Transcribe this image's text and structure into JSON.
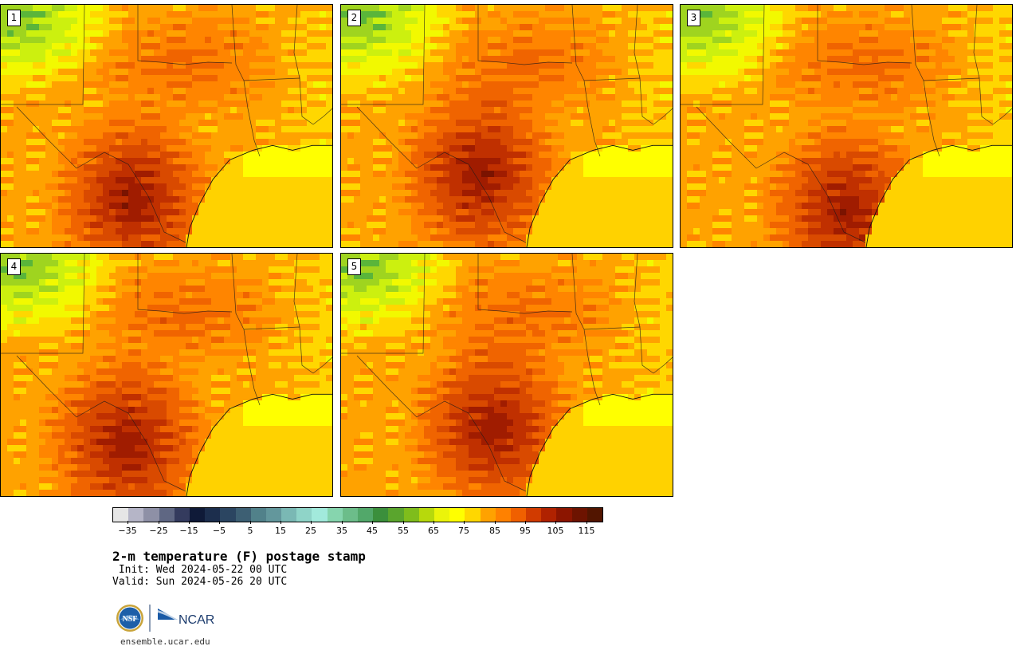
{
  "title": "2-m temperature (F) postage stamp",
  "init": " Init: Wed 2024-05-22 00 UTC",
  "valid": "Valid: Sun 2024-05-26 20 UTC",
  "stamps": [
    {
      "label": "1",
      "hot_center": [
        0.4,
        0.8
      ]
    },
    {
      "label": "2",
      "hot_center": [
        0.42,
        0.7
      ]
    },
    {
      "label": "3",
      "hot_center": [
        0.5,
        0.85
      ]
    },
    {
      "label": "4",
      "hot_center": [
        0.38,
        0.78
      ]
    },
    {
      "label": "5",
      "hot_center": [
        0.46,
        0.72
      ]
    }
  ],
  "colorbar": {
    "ticks": [
      "−35",
      "−25",
      "−15",
      "−5",
      "5",
      "15",
      "25",
      "35",
      "45",
      "55",
      "65",
      "75",
      "85",
      "95",
      "105",
      "115"
    ],
    "colors": [
      "#e6e6e6",
      "#b5b5c7",
      "#8e90a6",
      "#5f6783",
      "#343b5e",
      "#0f1a38",
      "#1c2e4d",
      "#2b4561",
      "#3d5f73",
      "#51818a",
      "#63979c",
      "#7ab8b4",
      "#8fd4c8",
      "#a2eadc",
      "#86d5ae",
      "#6cbd8a",
      "#52a86a",
      "#3b8f3c",
      "#5aa52d",
      "#7fbd1c",
      "#b7d90c",
      "#ebf40a",
      "#ffff00",
      "#ffd700",
      "#ffa200",
      "#ff8100",
      "#f06000",
      "#d13b00",
      "#b02200",
      "#8c1500",
      "#6d1300",
      "#521500"
    ]
  },
  "logos": {
    "nsf": "NSF",
    "ncar": "NCAR"
  },
  "url": "ensemble.ucar.edu"
}
